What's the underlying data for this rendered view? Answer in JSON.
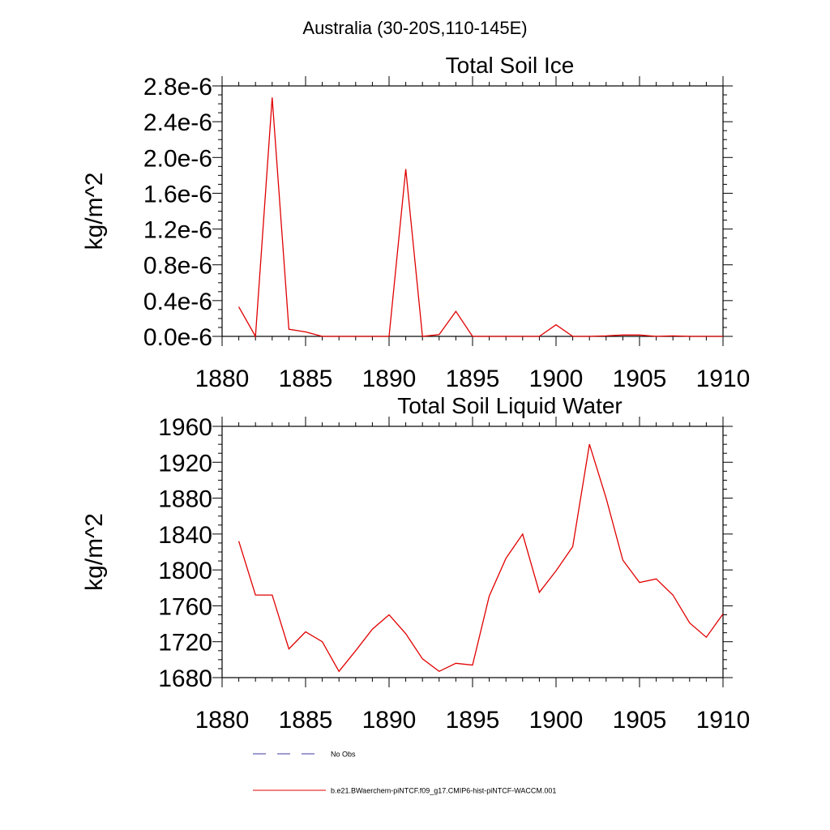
{
  "figure": {
    "suptitle": "Australia (30-20S,110-145E)"
  },
  "legend": [
    {
      "label": "No Obs",
      "style": "dashed",
      "color": "#3a3aa0"
    },
    {
      "label": "b.e21.BWaerchem-piNTCF.f09_g17.CMIP6-hist-piNTCF-WACCM.001",
      "style": "solid",
      "color": "#e00000"
    }
  ],
  "chart_data": [
    {
      "type": "line",
      "title": "Total Soil Ice",
      "xlabel": "",
      "ylabel": "kg/m^2",
      "xlim": [
        1880,
        1910
      ],
      "ylim": [
        0,
        2.8e-06
      ],
      "xticks": [
        1880,
        1885,
        1890,
        1895,
        1900,
        1905,
        1910
      ],
      "xtick_labels": [
        "1880",
        "1885",
        "1890",
        "1895",
        "1900",
        "1905",
        "1910"
      ],
      "yticks": [
        0,
        4e-07,
        8e-07,
        1.2e-06,
        1.6e-06,
        2e-06,
        2.4e-06,
        2.8e-06
      ],
      "ytick_labels": [
        "0.0e-6",
        "0.4e-6",
        "0.8e-6",
        "1.2e-6",
        "1.6e-6",
        "2.0e-6",
        "2.4e-6",
        "2.8e-6"
      ],
      "grid": false,
      "series": [
        {
          "color": "#e00000",
          "x": [
            1881,
            1882,
            1883,
            1884,
            1885,
            1886,
            1887,
            1888,
            1889,
            1890,
            1891,
            1892,
            1893,
            1894,
            1895,
            1896,
            1897,
            1898,
            1899,
            1900,
            1901,
            1902,
            1903,
            1904,
            1905,
            1906,
            1907,
            1908,
            1909,
            1910
          ],
          "y": [
            3.3e-07,
            0,
            2.67e-06,
            8e-08,
            5e-08,
            0,
            0,
            0,
            0,
            0,
            1.87e-06,
            0,
            2e-08,
            2.8e-07,
            0,
            0,
            0,
            0,
            0,
            1.3e-07,
            0,
            0,
            5e-09,
            1.5e-08,
            1.5e-08,
            0,
            5e-09,
            0,
            0,
            0
          ]
        }
      ]
    },
    {
      "type": "line",
      "title": "Total Soil Liquid Water",
      "xlabel": "",
      "ylabel": "kg/m^2",
      "xlim": [
        1880,
        1910
      ],
      "ylim": [
        1680,
        1960
      ],
      "xticks": [
        1880,
        1885,
        1890,
        1895,
        1900,
        1905,
        1910
      ],
      "xtick_labels": [
        "1880",
        "1885",
        "1890",
        "1895",
        "1900",
        "1905",
        "1910"
      ],
      "yticks": [
        1680,
        1720,
        1760,
        1800,
        1840,
        1880,
        1920,
        1960
      ],
      "ytick_labels": [
        "1680",
        "1720",
        "1760",
        "1800",
        "1840",
        "1880",
        "1920",
        "1960"
      ],
      "grid": false,
      "series": [
        {
          "color": "#e00000",
          "x": [
            1881,
            1882,
            1883,
            1884,
            1885,
            1886,
            1887,
            1888,
            1889,
            1890,
            1891,
            1892,
            1893,
            1894,
            1895,
            1896,
            1897,
            1898,
            1899,
            1900,
            1901,
            1902,
            1903,
            1904,
            1905,
            1906,
            1907,
            1908,
            1909,
            1910
          ],
          "y": [
            1832,
            1772,
            1772,
            1712,
            1731,
            1720,
            1687,
            1710,
            1734,
            1750,
            1729,
            1701,
            1687,
            1696,
            1694,
            1771,
            1813,
            1840,
            1775,
            1799,
            1826,
            1940,
            1880,
            1811,
            1786,
            1790,
            1772,
            1741,
            1725,
            1751
          ]
        }
      ]
    }
  ]
}
